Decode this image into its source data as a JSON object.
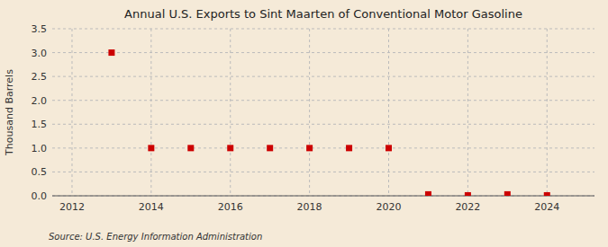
{
  "chart_data": {
    "type": "scatter",
    "title": "Annual U.S. Exports to Sint Maarten of Conventional Motor Gasoline",
    "ylabel": "Thousand Barrels",
    "source": "Source: U.S. Energy Information Administration",
    "x": [
      2013,
      2014,
      2015,
      2016,
      2017,
      2018,
      2019,
      2020,
      2021,
      2022,
      2023,
      2024
    ],
    "values": [
      3.0,
      1.0,
      1.0,
      1.0,
      1.0,
      1.0,
      1.0,
      1.0,
      0.03,
      0.01,
      0.03,
      0.01
    ],
    "color": "#cc0000",
    "marker": "square",
    "xlim": [
      2011.5,
      2025.2
    ],
    "ylim": [
      0.0,
      3.5
    ],
    "xticks": [
      2012,
      2014,
      2016,
      2018,
      2020,
      2022,
      2024
    ],
    "yticks": [
      {
        "value": 0.0,
        "label": "0.0"
      },
      0.5,
      {
        "value": 1.0,
        "label": "1.0"
      },
      1.5,
      {
        "value": 2.0,
        "label": "2.0"
      },
      2.5,
      {
        "value": 3.0,
        "label": "3.0"
      },
      3.5
    ],
    "grid": true
  }
}
